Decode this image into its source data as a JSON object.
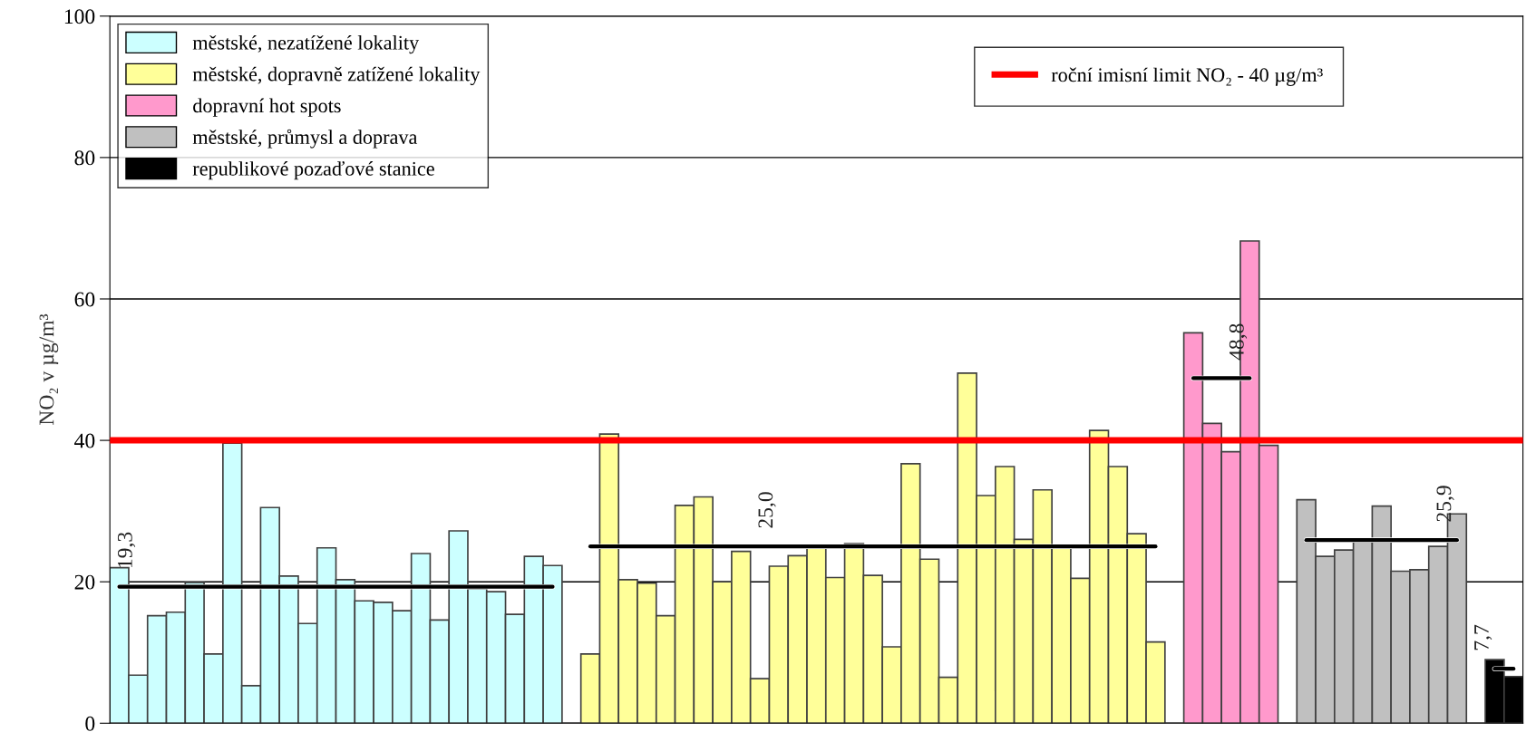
{
  "chart_data": {
    "type": "bar",
    "ylabel": "NO₂ v µg/m³",
    "categories": [
      null,
      null,
      null,
      null,
      null,
      null,
      null,
      null,
      null,
      null,
      null,
      null,
      null,
      null,
      null,
      null,
      null,
      null,
      null,
      null,
      null,
      null,
      null,
      null,
      null,
      null,
      null,
      null,
      null,
      null,
      null,
      null,
      null,
      null,
      null,
      null,
      null,
      null,
      null,
      null,
      null,
      null,
      null,
      null,
      null,
      null,
      null,
      null,
      null,
      null,
      null,
      null,
      null,
      null,
      null,
      null,
      null,
      null,
      null,
      null,
      null,
      null,
      null,
      null,
      null,
      null,
      null,
      null,
      null,
      null,
      null,
      null,
      null,
      null,
      null
    ],
    "series": [
      {
        "name": "městské, nezatížené lokality",
        "color": "#ccffff",
        "values": [
          22.0,
          6.8,
          15.2,
          15.7,
          19.9,
          9.8,
          39.6,
          5.3,
          30.5,
          20.8,
          14.1,
          24.8,
          20.3,
          17.3,
          17.1,
          15.9,
          24.0,
          14.6,
          27.2,
          19.0,
          18.6,
          15.4,
          23.6,
          22.3,
          null,
          null,
          null,
          null,
          null,
          null,
          null,
          null,
          null,
          null,
          null,
          null,
          null,
          null,
          null,
          null,
          null,
          null,
          null,
          null,
          null,
          null,
          null,
          null,
          null,
          null,
          null,
          null,
          null,
          null,
          null,
          null,
          null,
          null,
          null,
          null,
          null,
          null,
          null,
          null,
          null,
          null,
          null,
          null,
          null,
          null,
          null,
          null,
          null,
          null,
          null
        ]
      },
      {
        "name": "městské, dopravně zatížené lokality",
        "color": "#ffff99",
        "values": [
          null,
          null,
          null,
          null,
          null,
          null,
          null,
          null,
          null,
          null,
          null,
          null,
          null,
          null,
          null,
          null,
          null,
          null,
          null,
          null,
          null,
          null,
          null,
          null,
          null,
          9.8,
          40.9,
          20.3,
          19.8,
          15.2,
          30.8,
          32.0,
          20.0,
          24.3,
          6.3,
          22.2,
          23.7,
          24.8,
          20.6,
          25.4,
          20.9,
          10.8,
          36.7,
          23.2,
          6.5,
          49.5,
          32.2,
          36.3,
          26.0,
          33.0,
          24.9,
          20.5,
          41.4,
          36.3,
          26.8,
          11.5,
          null,
          null,
          null,
          null,
          null,
          null,
          null,
          null,
          null,
          null,
          null,
          null,
          null,
          null,
          null,
          null,
          null,
          null,
          null
        ]
      },
      {
        "name": "dopravní hot spots",
        "color": "#ff99cc",
        "values": [
          null,
          null,
          null,
          null,
          null,
          null,
          null,
          null,
          null,
          null,
          null,
          null,
          null,
          null,
          null,
          null,
          null,
          null,
          null,
          null,
          null,
          null,
          null,
          null,
          null,
          null,
          null,
          null,
          null,
          null,
          null,
          null,
          null,
          null,
          null,
          null,
          null,
          null,
          null,
          null,
          null,
          null,
          null,
          null,
          null,
          null,
          null,
          null,
          null,
          null,
          null,
          null,
          null,
          null,
          null,
          null,
          null,
          55.2,
          42.4,
          38.4,
          68.2,
          39.3,
          null,
          null,
          null,
          null,
          null,
          null,
          null,
          null,
          null,
          null,
          null,
          null,
          null
        ]
      },
      {
        "name": "městské, průmysl a doprava",
        "color": "#c0c0c0",
        "values": [
          null,
          null,
          null,
          null,
          null,
          null,
          null,
          null,
          null,
          null,
          null,
          null,
          null,
          null,
          null,
          null,
          null,
          null,
          null,
          null,
          null,
          null,
          null,
          null,
          null,
          null,
          null,
          null,
          null,
          null,
          null,
          null,
          null,
          null,
          null,
          null,
          null,
          null,
          null,
          null,
          null,
          null,
          null,
          null,
          null,
          null,
          null,
          null,
          null,
          null,
          null,
          null,
          null,
          null,
          null,
          null,
          null,
          null,
          null,
          null,
          null,
          null,
          null,
          31.6,
          23.6,
          24.5,
          25.8,
          30.7,
          21.5,
          21.7,
          25.0,
          29.6,
          null,
          null,
          null
        ]
      },
      {
        "name": "republikové pozaďové stanice",
        "color": "#000000",
        "values": [
          null,
          null,
          null,
          null,
          null,
          null,
          null,
          null,
          null,
          null,
          null,
          null,
          null,
          null,
          null,
          null,
          null,
          null,
          null,
          null,
          null,
          null,
          null,
          null,
          null,
          null,
          null,
          null,
          null,
          null,
          null,
          null,
          null,
          null,
          null,
          null,
          null,
          null,
          null,
          null,
          null,
          null,
          null,
          null,
          null,
          null,
          null,
          null,
          null,
          null,
          null,
          null,
          null,
          null,
          null,
          null,
          null,
          null,
          null,
          null,
          null,
          null,
          null,
          null,
          null,
          null,
          null,
          null,
          null,
          null,
          null,
          null,
          null,
          9.0,
          6.6
        ]
      },
      {
        "type": "line",
        "color": "#000000",
        "values": [
          19.3,
          19.3,
          19.3,
          19.3,
          19.3,
          19.3,
          19.3,
          19.3,
          19.3,
          19.3,
          19.3,
          19.3,
          19.3,
          19.3,
          19.3,
          19.3,
          19.3,
          19.3,
          19.3,
          19.3,
          19.3,
          19.3,
          19.3,
          19.3,
          null,
          null,
          null,
          null,
          null,
          null,
          null,
          null,
          null,
          null,
          null,
          null,
          null,
          null,
          null,
          null,
          null,
          null,
          null,
          null,
          null,
          null,
          null,
          null,
          null,
          null,
          null,
          null,
          null,
          null,
          null,
          null,
          null,
          null,
          null,
          null,
          null,
          null,
          null,
          null,
          null,
          null,
          null,
          null,
          null,
          null,
          null,
          null,
          null,
          null,
          null
        ],
        "value_labels": [
          null,
          "19,3",
          null,
          null,
          null,
          null,
          null,
          null,
          null,
          null,
          null,
          null,
          null,
          null,
          null,
          null,
          null,
          null,
          null,
          null,
          null,
          null,
          null,
          null,
          null,
          null,
          null,
          null,
          null,
          null,
          null,
          null,
          null,
          null,
          null,
          null,
          null,
          null,
          null,
          null,
          null,
          null,
          null,
          null,
          null,
          null,
          null,
          null,
          null,
          null,
          null,
          null,
          null,
          null,
          null,
          null,
          null,
          null,
          null,
          null,
          null,
          null,
          null,
          null,
          null,
          null,
          null,
          null,
          null,
          null,
          null,
          null,
          null,
          null,
          null
        ]
      },
      {
        "type": "line",
        "color": "#000000",
        "values": [
          null,
          null,
          null,
          null,
          null,
          null,
          null,
          null,
          null,
          null,
          null,
          null,
          null,
          null,
          null,
          null,
          null,
          null,
          null,
          null,
          null,
          null,
          null,
          null,
          null,
          25.0,
          25.0,
          25.0,
          25.0,
          25.0,
          25.0,
          25.0,
          25.0,
          25.0,
          25.0,
          25.0,
          25.0,
          25.0,
          25.0,
          25.0,
          25.0,
          25.0,
          25.0,
          25.0,
          25.0,
          25.0,
          25.0,
          25.0,
          25.0,
          25.0,
          25.0,
          25.0,
          25.0,
          25.0,
          25.0,
          25.0,
          null,
          null,
          null,
          null,
          null,
          null,
          null,
          null,
          null,
          null,
          null,
          null,
          null,
          null,
          null,
          null,
          null,
          null,
          null
        ],
        "value_labels": [
          null,
          null,
          null,
          null,
          null,
          null,
          null,
          null,
          null,
          null,
          null,
          null,
          null,
          null,
          null,
          null,
          null,
          null,
          null,
          null,
          null,
          null,
          null,
          null,
          null,
          null,
          null,
          null,
          null,
          null,
          null,
          null,
          null,
          null,
          null,
          "25,0",
          null,
          null,
          null,
          null,
          null,
          null,
          null,
          null,
          null,
          null,
          null,
          null,
          null,
          null,
          null,
          null,
          null,
          null,
          null,
          null,
          null,
          null,
          null,
          null,
          null,
          null,
          null,
          null,
          null,
          null,
          null,
          null,
          null,
          null,
          null,
          null,
          null,
          null,
          null
        ]
      },
      {
        "type": "line",
        "color": "#000000",
        "values": [
          null,
          null,
          null,
          null,
          null,
          null,
          null,
          null,
          null,
          null,
          null,
          null,
          null,
          null,
          null,
          null,
          null,
          null,
          null,
          null,
          null,
          null,
          null,
          null,
          null,
          null,
          null,
          null,
          null,
          null,
          null,
          null,
          null,
          null,
          null,
          null,
          null,
          null,
          null,
          null,
          null,
          null,
          null,
          null,
          null,
          null,
          null,
          null,
          null,
          null,
          null,
          null,
          null,
          null,
          null,
          null,
          null,
          48.8,
          48.8,
          48.8,
          48.8,
          null,
          null,
          null,
          null,
          null,
          null,
          null,
          null,
          null,
          null,
          null,
          null,
          null,
          null
        ],
        "value_labels": [
          null,
          null,
          null,
          null,
          null,
          null,
          null,
          null,
          null,
          null,
          null,
          null,
          null,
          null,
          null,
          null,
          null,
          null,
          null,
          null,
          null,
          null,
          null,
          null,
          null,
          null,
          null,
          null,
          null,
          null,
          null,
          null,
          null,
          null,
          null,
          null,
          null,
          null,
          null,
          null,
          null,
          null,
          null,
          null,
          null,
          null,
          null,
          null,
          null,
          null,
          null,
          null,
          null,
          null,
          null,
          null,
          null,
          null,
          null,
          null,
          "48,8",
          null,
          null,
          null,
          null,
          null,
          null,
          null,
          null,
          null,
          null,
          null,
          null,
          null,
          null
        ]
      },
      {
        "type": "line",
        "color": "#000000",
        "values": [
          null,
          null,
          null,
          null,
          null,
          null,
          null,
          null,
          null,
          null,
          null,
          null,
          null,
          null,
          null,
          null,
          null,
          null,
          null,
          null,
          null,
          null,
          null,
          null,
          null,
          null,
          null,
          null,
          null,
          null,
          null,
          null,
          null,
          null,
          null,
          null,
          null,
          null,
          null,
          null,
          null,
          null,
          null,
          null,
          null,
          null,
          null,
          null,
          null,
          null,
          null,
          null,
          null,
          null,
          null,
          null,
          null,
          null,
          null,
          null,
          null,
          null,
          null,
          25.9,
          25.9,
          25.9,
          25.9,
          25.9,
          25.9,
          25.9,
          25.9,
          25.9,
          null,
          null,
          null
        ],
        "value_labels": [
          null,
          null,
          null,
          null,
          null,
          null,
          null,
          null,
          null,
          null,
          null,
          null,
          null,
          null,
          null,
          null,
          null,
          null,
          null,
          null,
          null,
          null,
          null,
          null,
          null,
          null,
          null,
          null,
          null,
          null,
          null,
          null,
          null,
          null,
          null,
          null,
          null,
          null,
          null,
          null,
          null,
          null,
          null,
          null,
          null,
          null,
          null,
          null,
          null,
          null,
          null,
          null,
          null,
          null,
          null,
          null,
          null,
          null,
          null,
          null,
          null,
          null,
          null,
          null,
          null,
          null,
          null,
          null,
          null,
          null,
          null,
          "25,9",
          null,
          null,
          null
        ]
      },
      {
        "type": "line",
        "color": "#000000",
        "values": [
          null,
          null,
          null,
          null,
          null,
          null,
          null,
          null,
          null,
          null,
          null,
          null,
          null,
          null,
          null,
          null,
          null,
          null,
          null,
          null,
          null,
          null,
          null,
          null,
          null,
          null,
          null,
          null,
          null,
          null,
          null,
          null,
          null,
          null,
          null,
          null,
          null,
          null,
          null,
          null,
          null,
          null,
          null,
          null,
          null,
          null,
          null,
          null,
          null,
          null,
          null,
          null,
          null,
          null,
          null,
          null,
          null,
          null,
          null,
          null,
          null,
          null,
          null,
          null,
          null,
          null,
          null,
          null,
          null,
          null,
          null,
          null,
          null,
          7.7,
          7.7
        ],
        "value_labels": [
          null,
          null,
          null,
          null,
          null,
          null,
          null,
          null,
          null,
          null,
          null,
          null,
          null,
          null,
          null,
          null,
          null,
          null,
          null,
          null,
          null,
          null,
          null,
          null,
          null,
          null,
          null,
          null,
          null,
          null,
          null,
          null,
          null,
          null,
          null,
          null,
          null,
          null,
          null,
          null,
          null,
          null,
          null,
          null,
          null,
          null,
          null,
          null,
          null,
          null,
          null,
          null,
          null,
          null,
          null,
          null,
          null,
          null,
          null,
          null,
          null,
          null,
          null,
          null,
          null,
          null,
          null,
          null,
          null,
          null,
          null,
          null,
          null,
          "7,7",
          null
        ]
      }
    ],
    "ref_lines": [
      {
        "axis": "y",
        "value": 40,
        "label": "roční imisní limit NO₂ - 40 µg/m³",
        "color": "#ff0000"
      }
    ],
    "ylim": [
      0,
      100
    ],
    "yticks": [
      0,
      20,
      40,
      60,
      80,
      100
    ],
    "grid": "y",
    "legend": "top left",
    "tick_labels": "y"
  }
}
